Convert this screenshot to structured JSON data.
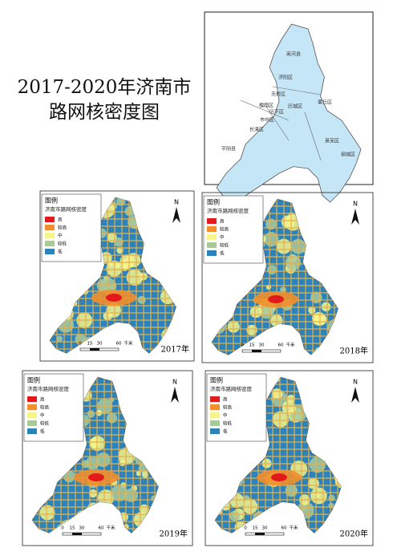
{
  "title_lines": [
    "2017-2020年济南市",
    "路网核密度图"
  ],
  "index_map": {
    "districts": [
      "商河县",
      "济阳区",
      "天桥区",
      "槐荫区",
      "历城区",
      "历下区",
      "市中区",
      "章丘区",
      "长清区",
      "平阴县",
      "莱芜区",
      "钢城区"
    ]
  },
  "panels": [
    {
      "year": "2017年",
      "legend_title": "图例",
      "legend_subtitle": "济南市路网核密度",
      "north": "N",
      "scale_labels": [
        "0",
        "15",
        "30",
        "60",
        "千米"
      ],
      "legend_items": [
        {
          "label": "高",
          "color": "#e31a1c"
        },
        {
          "label": "较高",
          "color": "#f28e2b"
        },
        {
          "label": "中",
          "color": "#f7f48b"
        },
        {
          "label": "较低",
          "color": "#a9c99b"
        },
        {
          "label": "低",
          "color": "#2b83ba"
        }
      ]
    },
    {
      "year": "2018年",
      "legend_title": "图例",
      "legend_subtitle": "济南市路网核密度",
      "north": "N",
      "scale_labels": [
        "0",
        "15",
        "30",
        "60",
        "千米"
      ],
      "legend_items": [
        {
          "label": "高",
          "color": "#e31a1c"
        },
        {
          "label": "较高",
          "color": "#f28e2b"
        },
        {
          "label": "中",
          "color": "#f7f48b"
        },
        {
          "label": "较低",
          "color": "#a9c99b"
        },
        {
          "label": "低",
          "color": "#2b83ba"
        }
      ]
    },
    {
      "year": "2019年",
      "legend_title": "图例",
      "legend_subtitle": "济南市路网核密度",
      "north": "N",
      "scale_labels": [
        "0",
        "15",
        "30",
        "60",
        "千米"
      ],
      "legend_items": [
        {
          "label": "高",
          "color": "#e31a1c"
        },
        {
          "label": "较高",
          "color": "#f28e2b"
        },
        {
          "label": "中",
          "color": "#f7f48b"
        },
        {
          "label": "较低",
          "color": "#a9c99b"
        },
        {
          "label": "低",
          "color": "#2b83ba"
        }
      ]
    },
    {
      "year": "2020年",
      "legend_title": "图例",
      "legend_subtitle": "济南市路网核密度",
      "north": "N",
      "scale_labels": [
        "0",
        "15",
        "30",
        "60",
        "千米"
      ],
      "legend_items": [
        {
          "label": "高",
          "color": "#e31a1c"
        },
        {
          "label": "较高",
          "color": "#f28e2b"
        },
        {
          "label": "中",
          "color": "#f7f48b"
        },
        {
          "label": "较低",
          "color": "#a9c99b"
        },
        {
          "label": "低",
          "color": "#2b83ba"
        }
      ]
    }
  ]
}
